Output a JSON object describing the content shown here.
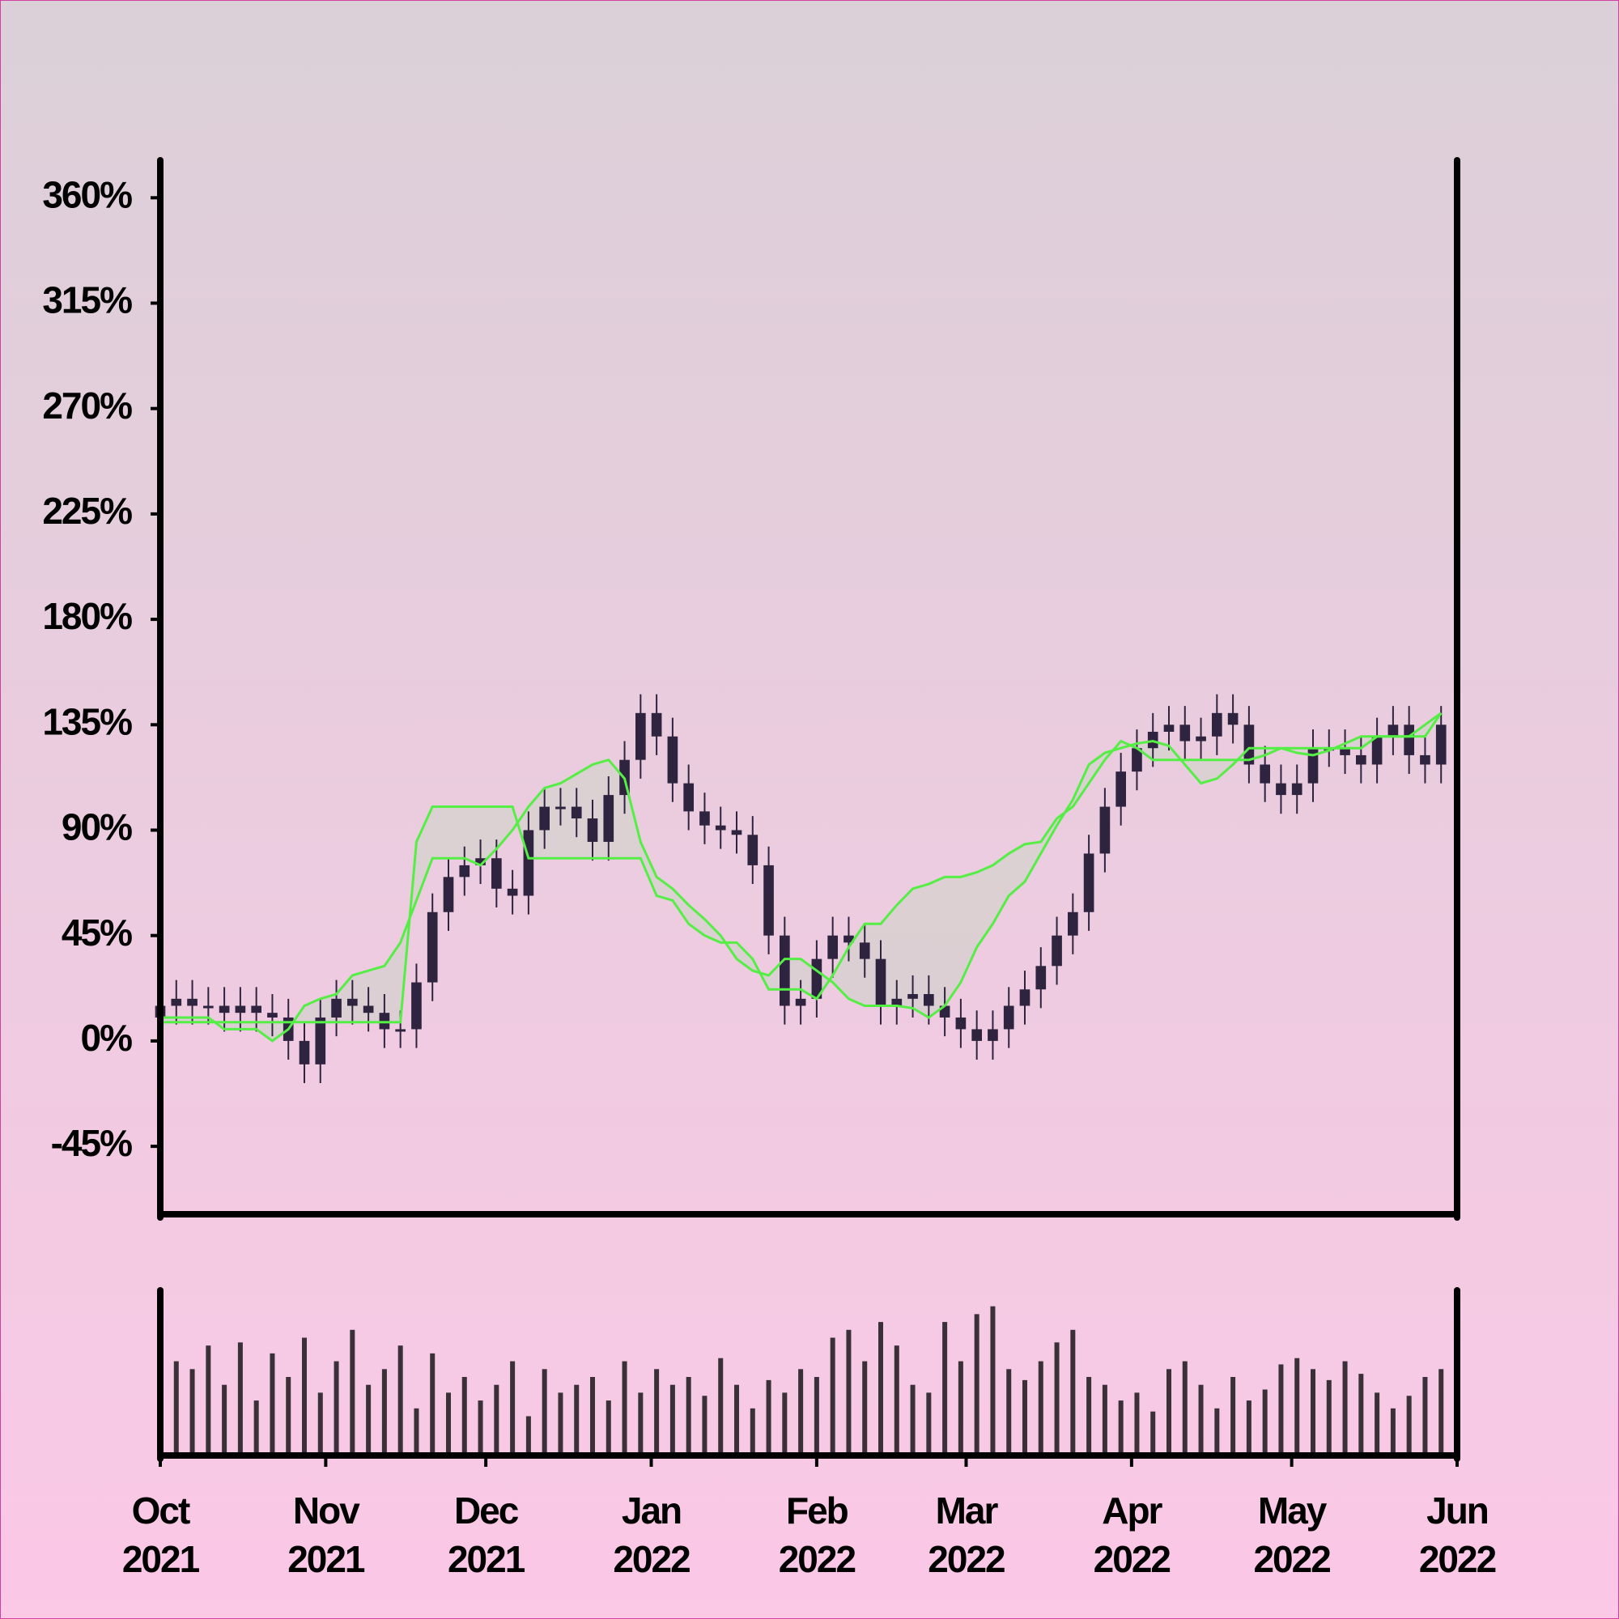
{
  "chart_data": {
    "type": "candlestick",
    "x": [
      0,
      3,
      6,
      9,
      12,
      15,
      18,
      21,
      24,
      27,
      30,
      33,
      36,
      39,
      42,
      45,
      48,
      51,
      54,
      57,
      60,
      63,
      66,
      69,
      72,
      75,
      78,
      81,
      84,
      87,
      90,
      93,
      96,
      99,
      102,
      105,
      108,
      111,
      114,
      117,
      120,
      123,
      126,
      129,
      132,
      135,
      138,
      141,
      144,
      147,
      150,
      153,
      156,
      159,
      162,
      165,
      168,
      171,
      174,
      177,
      180,
      183,
      186,
      189,
      192,
      195,
      198,
      201,
      204,
      207,
      210,
      213,
      216,
      219,
      222,
      225,
      228,
      231,
      234,
      237,
      240
    ],
    "open": [
      10,
      15,
      18,
      15,
      15,
      12,
      15,
      12,
      10,
      0,
      -10,
      10,
      18,
      15,
      12,
      5,
      5,
      25,
      55,
      70,
      75,
      78,
      65,
      62,
      90,
      100,
      100,
      95,
      85,
      105,
      120,
      140,
      130,
      110,
      98,
      92,
      90,
      88,
      75,
      45,
      15,
      18,
      35,
      45,
      42,
      35,
      15,
      18,
      20,
      15,
      10,
      5,
      0,
      5,
      15,
      22,
      32,
      45,
      55,
      80,
      100,
      115,
      125,
      132,
      135,
      128,
      130,
      140,
      135,
      118,
      110,
      105,
      110,
      125,
      125,
      122,
      118,
      130,
      135,
      122,
      118
    ],
    "high": [
      23,
      26,
      26,
      23,
      23,
      23,
      23,
      20,
      18,
      8,
      18,
      26,
      26,
      23,
      20,
      13,
      33,
      63,
      78,
      83,
      86,
      86,
      73,
      98,
      108,
      108,
      108,
      103,
      113,
      128,
      148,
      148,
      138,
      118,
      106,
      100,
      98,
      96,
      83,
      53,
      26,
      43,
      53,
      53,
      50,
      43,
      26,
      28,
      28,
      23,
      18,
      13,
      13,
      23,
      30,
      40,
      53,
      63,
      88,
      108,
      123,
      133,
      140,
      143,
      143,
      138,
      148,
      148,
      143,
      126,
      118,
      118,
      133,
      133,
      133,
      130,
      138,
      143,
      143,
      130,
      143
    ],
    "low": [
      2,
      7,
      7,
      7,
      4,
      4,
      4,
      2,
      -8,
      -18,
      -18,
      2,
      7,
      4,
      -3,
      -3,
      -3,
      17,
      47,
      62,
      67,
      57,
      54,
      54,
      82,
      92,
      87,
      77,
      77,
      97,
      112,
      122,
      102,
      90,
      84,
      82,
      80,
      67,
      37,
      7,
      7,
      10,
      27,
      34,
      27,
      7,
      7,
      10,
      7,
      2,
      -3,
      -8,
      -8,
      -3,
      7,
      14,
      24,
      37,
      47,
      72,
      92,
      107,
      117,
      124,
      120,
      120,
      122,
      127,
      110,
      102,
      97,
      97,
      102,
      117,
      114,
      110,
      110,
      122,
      114,
      110,
      110
    ],
    "close": [
      15,
      18,
      15,
      15,
      12,
      15,
      12,
      10,
      0,
      -10,
      10,
      18,
      15,
      12,
      5,
      5,
      25,
      55,
      70,
      75,
      78,
      65,
      62,
      90,
      100,
      100,
      95,
      85,
      105,
      120,
      140,
      130,
      110,
      98,
      92,
      90,
      88,
      75,
      45,
      15,
      18,
      35,
      45,
      42,
      35,
      15,
      18,
      20,
      15,
      10,
      5,
      0,
      5,
      15,
      22,
      32,
      45,
      55,
      80,
      100,
      115,
      125,
      132,
      135,
      128,
      130,
      140,
      135,
      118,
      110,
      105,
      110,
      125,
      125,
      122,
      118,
      130,
      135,
      122,
      118,
      135
    ],
    "color": "#2e2440",
    "xlim": [
      0,
      243
    ],
    "xticks": [
      {
        "value": 0,
        "label": "Oct 2021"
      },
      {
        "value": 31,
        "label": "Nov 2021"
      },
      {
        "value": 61,
        "label": "Dec 2021"
      },
      {
        "value": 92,
        "label": "Jan 2022"
      },
      {
        "value": 123,
        "label": "Feb 2022"
      },
      {
        "value": 151,
        "label": "Mar 2022"
      },
      {
        "value": 182,
        "label": "Apr 2022"
      },
      {
        "value": 212,
        "label": "May 2022"
      },
      {
        "value": 243,
        "label": "Jun 2022"
      }
    ],
    "ylim": [
      -74,
      376
    ],
    "yticks": [
      {
        "value": -45,
        "label": "-45%"
      },
      {
        "value": 0,
        "label": "0%"
      },
      {
        "value": 45,
        "label": "45%"
      },
      {
        "value": 90,
        "label": "90%"
      },
      {
        "value": 135,
        "label": "135%"
      },
      {
        "value": 180,
        "label": "180%"
      },
      {
        "value": 225,
        "label": "225%"
      },
      {
        "value": 270,
        "label": "270%"
      },
      {
        "value": 315,
        "label": "315%"
      },
      {
        "value": 360,
        "label": "360%"
      }
    ],
    "overlays": [
      {
        "color": "#55ee44",
        "values": [
          10,
          10,
          10,
          10,
          5,
          5,
          5,
          0,
          5,
          15,
          18,
          20,
          28,
          30,
          32,
          42,
          60,
          78,
          78,
          78,
          75,
          82,
          90,
          100,
          108,
          110,
          114,
          118,
          120,
          112,
          85,
          70,
          65,
          58,
          52,
          45,
          35,
          30,
          28,
          35,
          35,
          30,
          25,
          18,
          15,
          15,
          15,
          14,
          10,
          15,
          25,
          40,
          50,
          62,
          68,
          80,
          92,
          103,
          118,
          123,
          125,
          127,
          128,
          126,
          118,
          110,
          112,
          118,
          125,
          125,
          125,
          123,
          122,
          124,
          127,
          130,
          130,
          130,
          130,
          135,
          140
        ]
      },
      {
        "color": "#55ee44",
        "values": [
          8,
          8,
          8,
          8,
          8,
          8,
          8,
          8,
          8,
          8,
          8,
          8,
          8,
          8,
          8,
          8,
          85,
          100,
          100,
          100,
          100,
          100,
          100,
          78,
          78,
          78,
          78,
          78,
          78,
          78,
          78,
          62,
          60,
          50,
          45,
          42,
          42,
          35,
          22,
          22,
          22,
          18,
          28,
          40,
          50,
          50,
          58,
          65,
          67,
          70,
          70,
          72,
          75,
          80,
          84,
          85,
          95,
          100,
          110,
          120,
          128,
          125,
          120,
          120,
          120,
          120,
          120,
          120,
          120,
          122,
          125,
          125,
          125,
          125,
          125,
          125,
          130,
          130,
          130,
          130,
          140
        ]
      }
    ],
    "cloud_color": "#d8d0d0",
    "volume": {
      "color": "#3a3038",
      "ylim": [
        0,
        100
      ],
      "values": [
        88,
        60,
        55,
        70,
        45,
        72,
        35,
        65,
        50,
        75,
        40,
        60,
        80,
        45,
        55,
        70,
        30,
        65,
        40,
        50,
        35,
        45,
        60,
        25,
        55,
        40,
        45,
        50,
        35,
        60,
        40,
        55,
        45,
        50,
        38,
        62,
        45,
        30,
        48,
        40,
        55,
        50,
        75,
        80,
        60,
        85,
        70,
        45,
        40,
        85,
        60,
        90,
        95,
        55,
        48,
        60,
        72,
        80,
        50,
        45,
        35,
        40,
        28,
        55,
        60,
        45,
        30,
        50,
        35,
        42,
        58,
        62,
        55,
        48,
        60,
        52,
        40,
        30,
        38,
        50,
        55
      ]
    }
  }
}
